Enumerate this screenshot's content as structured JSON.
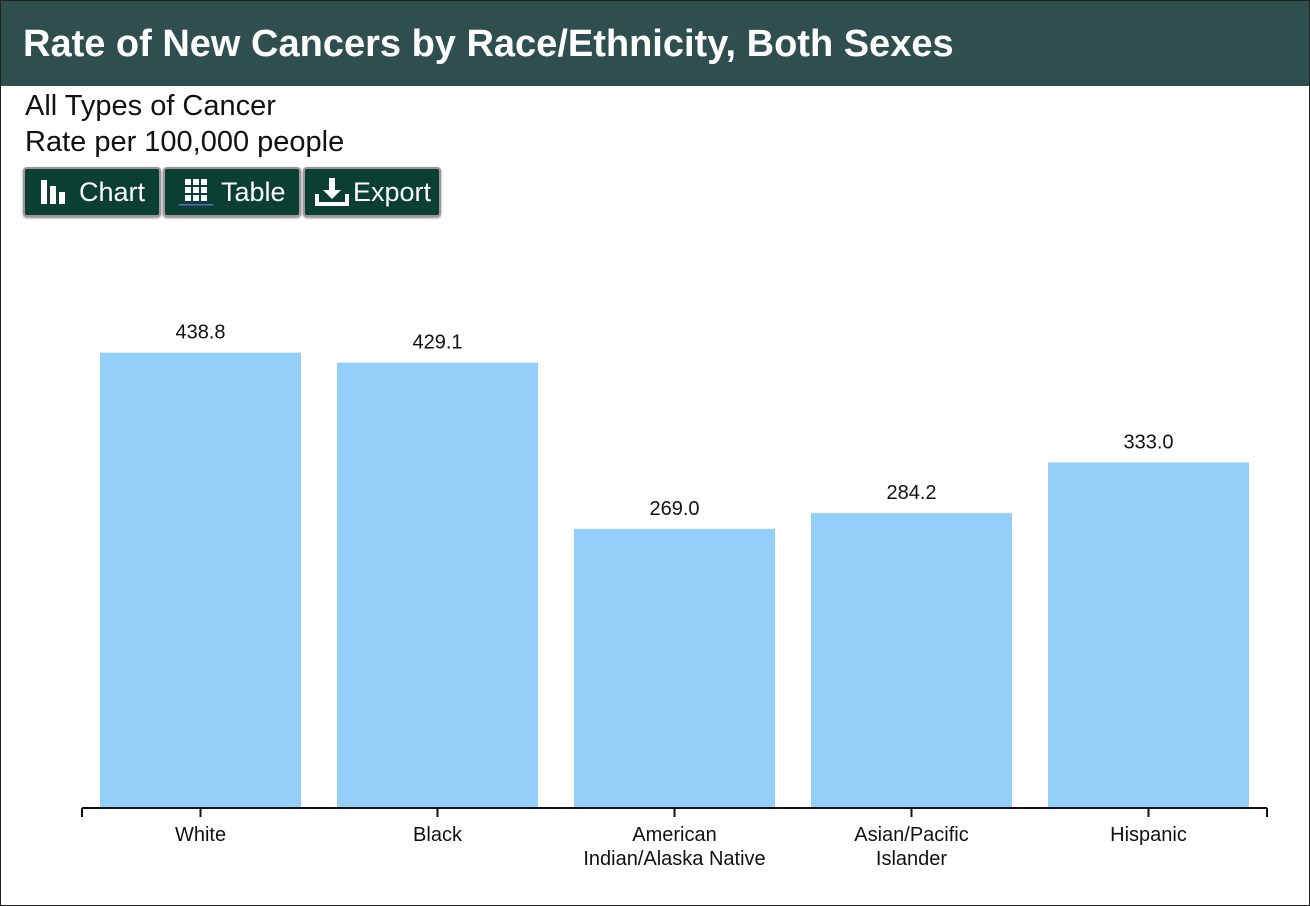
{
  "header": {
    "title": "Rate of New Cancers by Race/Ethnicity, Both Sexes"
  },
  "subtitle": {
    "line1": "All Types of Cancer",
    "line2": "Rate per 100,000 people"
  },
  "toolbar": {
    "chart_label": "Chart",
    "table_label": "Table",
    "export_label": "Export"
  },
  "colors": {
    "header_bg": "#2f4f4f",
    "button_bg": "#0b3f34",
    "bar": "#93cff8"
  },
  "chart_data": {
    "type": "bar",
    "title": "Rate of New Cancers by Race/Ethnicity, Both Sexes",
    "subtitle": "All Types of Cancer",
    "ylabel": "Rate per 100,000 people",
    "xlabel": "",
    "categories": [
      [
        "White"
      ],
      [
        "Black"
      ],
      [
        "American",
        "Indian/Alaska Native"
      ],
      [
        "Asian/Pacific",
        "Islander"
      ],
      [
        "Hispanic"
      ]
    ],
    "values": [
      438.8,
      429.1,
      269.0,
      284.2,
      333.0
    ],
    "value_labels": [
      "438.8",
      "429.1",
      "269.0",
      "284.2",
      "333.0"
    ],
    "ylim": [
      0,
      450
    ],
    "grid": false,
    "legend": "none"
  }
}
